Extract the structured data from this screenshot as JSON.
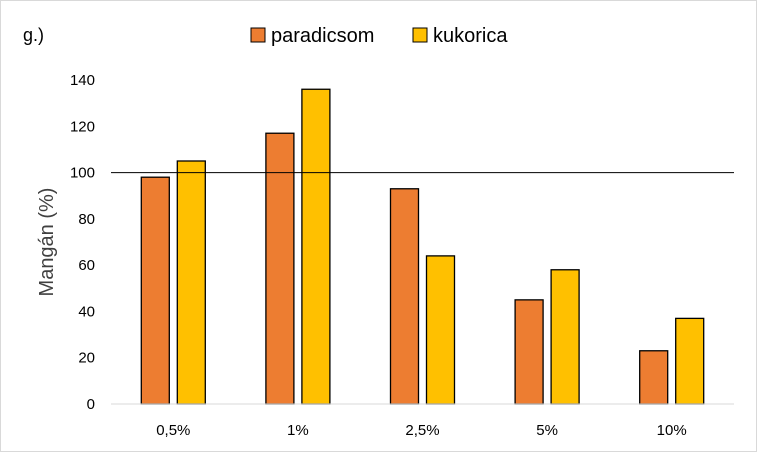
{
  "chart_data": {
    "type": "bar",
    "panel_label": "g.)",
    "title": "",
    "xlabel": "",
    "ylabel": "Mangán  (%)",
    "ylim": [
      0,
      140
    ],
    "yticks": [
      0,
      20,
      40,
      60,
      80,
      100,
      120,
      140
    ],
    "reference_line": 100,
    "grid": false,
    "legend_position": "top-center",
    "categories": [
      "0,5%",
      "1%",
      "2,5%",
      "5%",
      "10%"
    ],
    "series": [
      {
        "name": "paradicsom",
        "color": "#ED7D31",
        "values": [
          98,
          117,
          93,
          45,
          23
        ]
      },
      {
        "name": "kukorica",
        "color": "#FFC000",
        "values": [
          105,
          136,
          64,
          58,
          37
        ]
      }
    ]
  }
}
